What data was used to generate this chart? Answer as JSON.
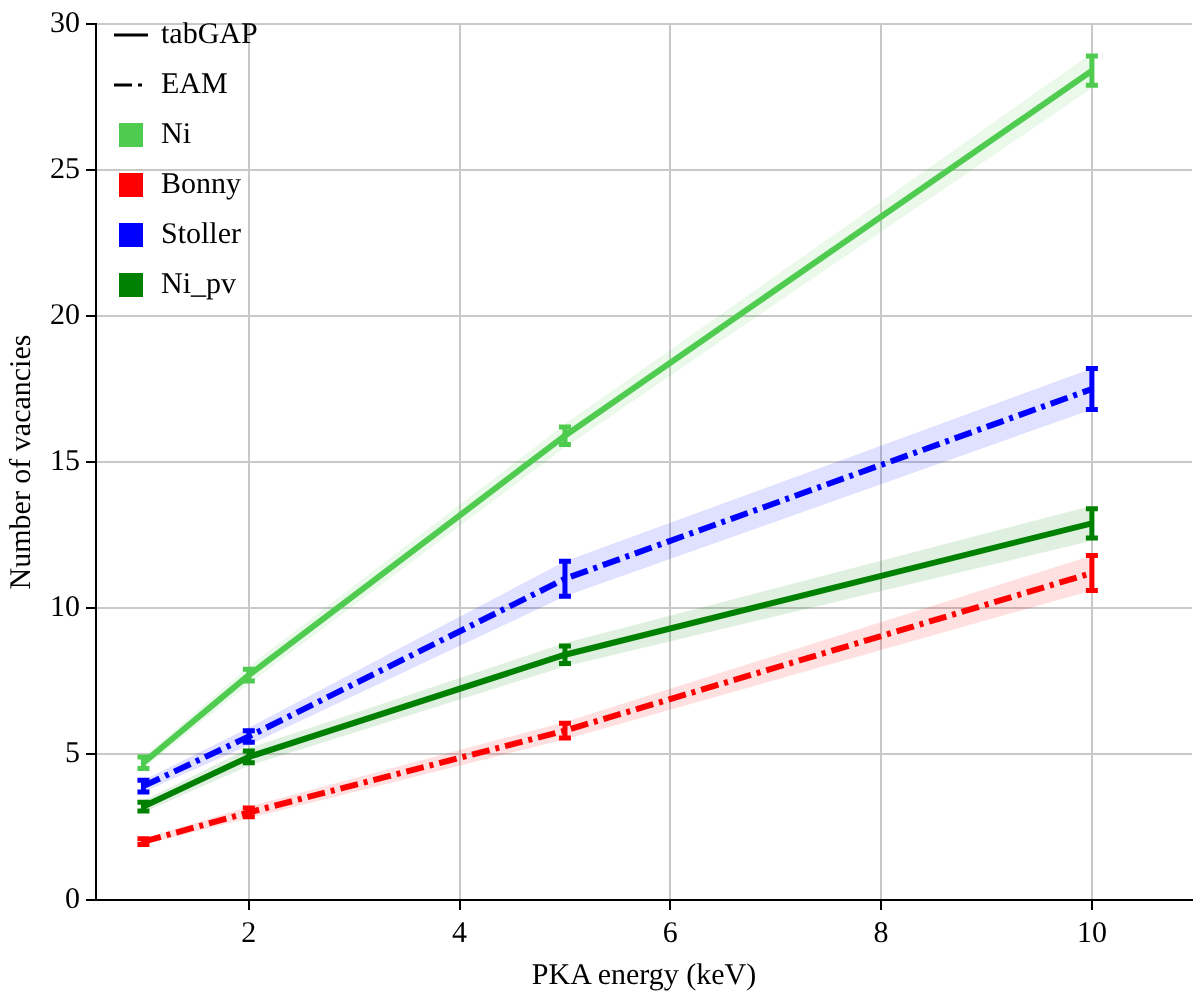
{
  "chart_data": {
    "type": "line",
    "xlabel": "PKA energy (keV)",
    "ylabel": "Number of vacancies",
    "x": [
      1,
      2,
      5,
      10
    ],
    "xlim": [
      0.55,
      10.95
    ],
    "xticks": [
      2,
      4,
      6,
      8,
      10
    ],
    "ylim": [
      0,
      30
    ],
    "yticks": [
      0,
      5,
      10,
      15,
      20,
      25,
      30
    ],
    "grid": true,
    "legend": "top left",
    "series": [
      {
        "name": "tabGAP",
        "color": "#000000",
        "line_style": "solid",
        "values": [
          null,
          null,
          null,
          null
        ]
      },
      {
        "name": "EAM",
        "color": "#000000",
        "line_style": "dashed",
        "values": [
          null,
          null,
          null,
          null
        ]
      },
      {
        "name": "Ni",
        "color": "#4fcc4f",
        "line_style": "solid",
        "values": [
          4.7,
          7.7,
          15.9,
          28.4
        ],
        "errors": [
          0.2,
          0.2,
          0.3,
          0.5
        ],
        "lower": [
          4.5,
          7.4,
          15.5,
          27.8
        ],
        "upper": [
          4.9,
          8.0,
          16.3,
          29.0
        ]
      },
      {
        "name": "Bonny",
        "color": "#ff0000",
        "line_style": "dashed",
        "values": [
          2.0,
          3.0,
          5.8,
          11.2
        ],
        "errors": [
          0.1,
          0.15,
          0.25,
          0.6
        ],
        "lower": [
          1.9,
          2.8,
          5.5,
          10.6
        ],
        "upper": [
          2.1,
          3.2,
          6.1,
          11.8
        ]
      },
      {
        "name": "Stoller",
        "color": "#0000ff",
        "line_style": "dashed",
        "values": [
          3.9,
          5.6,
          11.0,
          17.5
        ],
        "errors": [
          0.2,
          0.2,
          0.6,
          0.7
        ],
        "lower": [
          3.7,
          5.3,
          10.4,
          16.8
        ],
        "upper": [
          4.1,
          5.9,
          11.6,
          18.2
        ]
      },
      {
        "name": "Ni_pv",
        "color": "#008000",
        "line_style": "solid",
        "values": [
          3.2,
          4.9,
          8.4,
          12.9
        ],
        "errors": [
          0.15,
          0.2,
          0.3,
          0.5
        ],
        "lower": [
          3.0,
          4.6,
          8.0,
          12.3
        ],
        "upper": [
          3.4,
          5.2,
          8.8,
          13.5
        ]
      }
    ]
  }
}
